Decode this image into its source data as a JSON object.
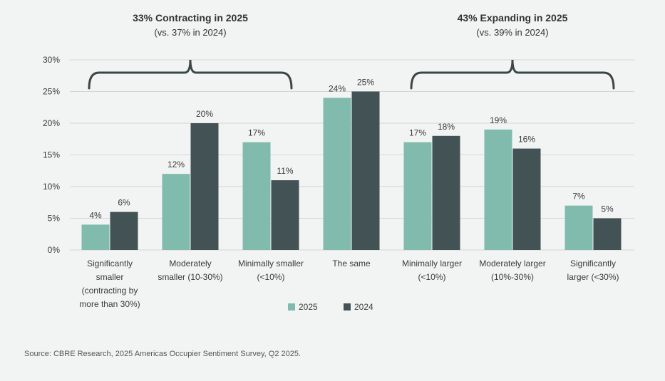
{
  "chart_data": {
    "type": "bar",
    "categories": [
      [
        "Significantly",
        "smaller",
        "(contracting by",
        "more than 30%)"
      ],
      [
        "Moderately",
        "smaller (10-30%)"
      ],
      [
        "Minimally smaller",
        "(<10%)"
      ],
      [
        "The same"
      ],
      [
        "Minimally larger",
        "(<10%)"
      ],
      [
        "Moderately larger",
        "(10%-30%)"
      ],
      [
        "Significantly",
        "larger (<30%)"
      ]
    ],
    "series": [
      {
        "name": "2025",
        "color": "#80bbad",
        "values": [
          4,
          12,
          17,
          24,
          17,
          19,
          7
        ],
        "labels": [
          "4%",
          "12%",
          "17%",
          "24%",
          "17%",
          "19%",
          "7%"
        ]
      },
      {
        "name": "2024",
        "color": "#435254",
        "values": [
          6,
          20,
          11,
          25,
          18,
          16,
          5
        ],
        "labels": [
          "6%",
          "20%",
          "11%",
          "25%",
          "18%",
          "16%",
          "5%"
        ]
      }
    ],
    "ylim": [
      0,
      30
    ],
    "yticks": [
      0,
      5,
      10,
      15,
      20,
      25,
      30
    ],
    "ytick_labels": [
      "0%",
      "5%",
      "10%",
      "15%",
      "20%",
      "25%",
      "30%"
    ],
    "grid": true,
    "legend_position": "bottom",
    "annotations": [
      {
        "title": "33% Contracting in 2025",
        "subtitle": "(vs. 37% in 2024)",
        "categories_span": [
          0,
          2
        ]
      },
      {
        "title": "43% Expanding in 2025",
        "subtitle": "(vs. 39% in 2024)",
        "categories_span": [
          4,
          6
        ]
      }
    ],
    "source": "Source: CBRE Research, 2025 Americas Occupier Sentiment Survey, Q2 2025."
  },
  "colors": {
    "background": "#f2f4f3",
    "grid": "#d3d6d6",
    "text": "#3a3a3a",
    "bracket": "#3b4648"
  }
}
